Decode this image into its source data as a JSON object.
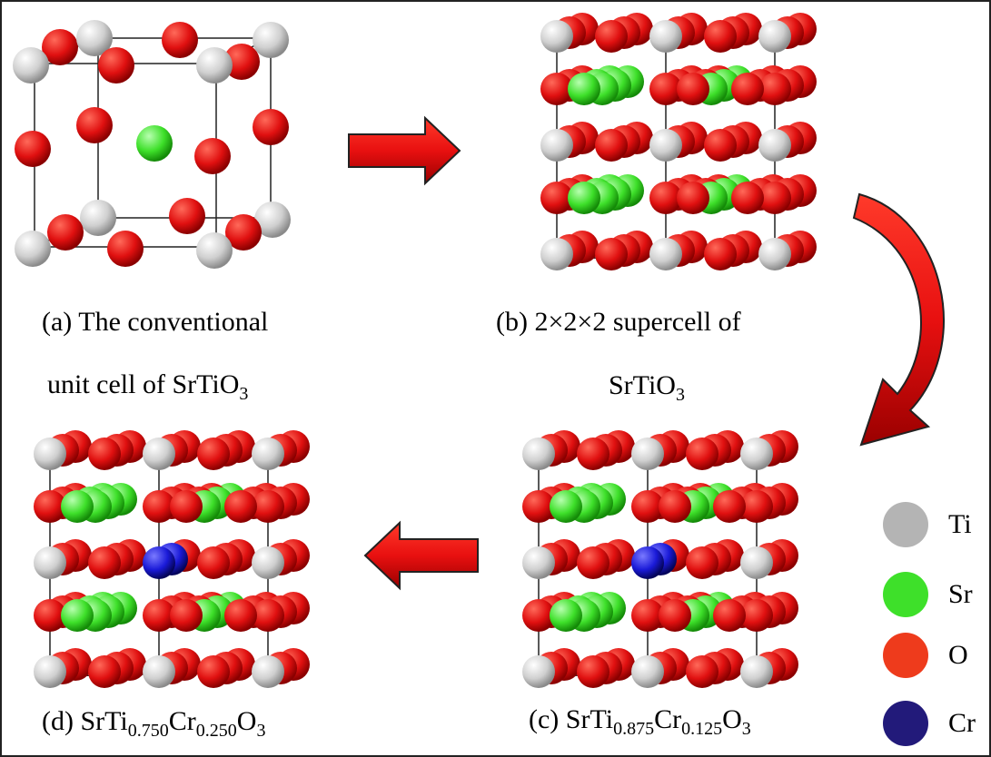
{
  "panels": {
    "a": {
      "line1": "(a) The conventional",
      "line2_pre": "unit cell of SrTiO",
      "line2_sub": "3"
    },
    "b": {
      "line1": "(b) 2×2×2 supercell of",
      "line2_pre": "SrTiO",
      "line2_sub": "3"
    },
    "c": {
      "pre": "(c) SrTi",
      "sub1": "0.875",
      "mid": "Cr",
      "sub2": "0.125",
      "post": "O",
      "sub3": "3"
    },
    "d": {
      "pre": "(d) SrTi",
      "sub1": "0.750",
      "mid": "Cr",
      "sub2": "0.250",
      "post": "O",
      "sub3": "3"
    }
  },
  "legend": [
    {
      "label": "Ti",
      "color": "#b4b4b4"
    },
    {
      "label": "Sr",
      "color": "#3ee02a"
    },
    {
      "label": "O",
      "color": "#ee3b1c"
    },
    {
      "label": "Cr",
      "color": "#221a7a"
    }
  ],
  "atom_colors": {
    "Ti": "#d8d8d8",
    "Sr": "#3ee02a",
    "O": "#e81010",
    "Cr": "#1a1ad8"
  },
  "arrow_color": "#e81010"
}
